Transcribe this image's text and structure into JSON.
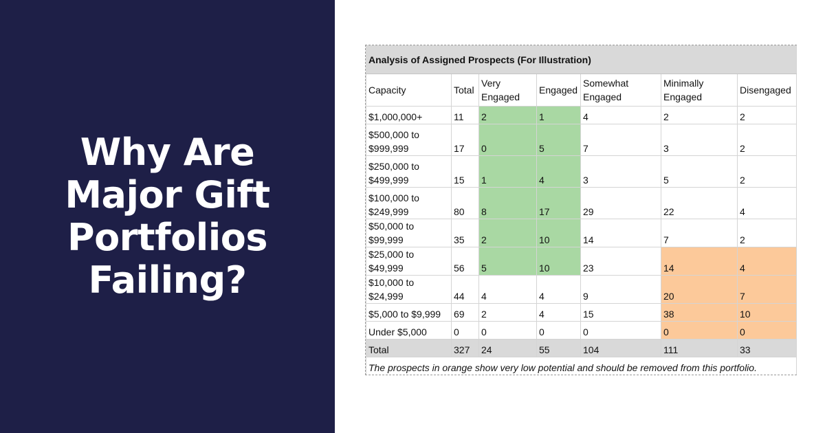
{
  "headline": {
    "lines": [
      "Why Are",
      "Major Gift",
      "Portfolios",
      "Failing?"
    ]
  },
  "table": {
    "title": "Analysis of Assigned Prospects (For Illustration)",
    "headers": [
      "Capacity",
      "Total",
      "Very Engaged",
      "Engaged",
      "Somewhat Engaged",
      "Minimally Engaged",
      "Disengaged"
    ],
    "rows": [
      {
        "capacity": "$1,000,000+",
        "total": "11",
        "very_engaged": "2",
        "engaged": "1",
        "somewhat_engaged": "4",
        "minimally_engaged": "2",
        "disengaged": "2"
      },
      {
        "capacity": "$500,000 to $999,999",
        "total": "17",
        "very_engaged": "0",
        "engaged": "5",
        "somewhat_engaged": "7",
        "minimally_engaged": "3",
        "disengaged": "2"
      },
      {
        "capacity": "$250,000 to $499,999",
        "total": "15",
        "very_engaged": "1",
        "engaged": "4",
        "somewhat_engaged": "3",
        "minimally_engaged": "5",
        "disengaged": "2"
      },
      {
        "capacity": "$100,000 to $249,999",
        "total": "80",
        "very_engaged": "8",
        "engaged": "17",
        "somewhat_engaged": "29",
        "minimally_engaged": "22",
        "disengaged": "4"
      },
      {
        "capacity": "$50,000 to $99,999",
        "total": "35",
        "very_engaged": "2",
        "engaged": "10",
        "somewhat_engaged": "14",
        "minimally_engaged": "7",
        "disengaged": "2"
      },
      {
        "capacity": "$25,000 to $49,999",
        "total": "56",
        "very_engaged": "5",
        "engaged": "10",
        "somewhat_engaged": "23",
        "minimally_engaged": "14",
        "disengaged": "4"
      },
      {
        "capacity": "$10,000 to $24,999",
        "total": "44",
        "very_engaged": "4",
        "engaged": "4",
        "somewhat_engaged": "9",
        "minimally_engaged": "20",
        "disengaged": "7"
      },
      {
        "capacity": "$5,000 to $9,999",
        "total": "69",
        "very_engaged": "2",
        "engaged": "4",
        "somewhat_engaged": "15",
        "minimally_engaged": "38",
        "disengaged": "10"
      },
      {
        "capacity": "Under $5,000",
        "total": "0",
        "very_engaged": "0",
        "engaged": "0",
        "somewhat_engaged": "0",
        "minimally_engaged": "0",
        "disengaged": "0"
      }
    ],
    "total_row": {
      "capacity": "Total",
      "total": "327",
      "very_engaged": "24",
      "engaged": "55",
      "somewhat_engaged": "104",
      "minimally_engaged": "111",
      "disengaged": "33"
    },
    "note": "The prospects in orange show very low potential and should be removed from this portfolio."
  },
  "colors": {
    "panel_background": "#1e1f47",
    "highlight_green": "#a9d8a3",
    "highlight_orange": "#fcc99a",
    "title_gray": "#d9d9d9"
  }
}
